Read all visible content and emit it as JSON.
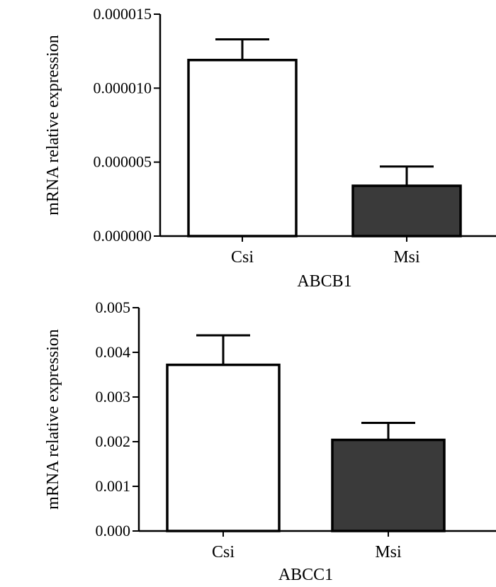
{
  "chart_data": [
    {
      "type": "bar",
      "panel": "top",
      "categories": [
        "Csi",
        "Msi"
      ],
      "values": [
        1.19e-05,
        3.4e-06
      ],
      "errors": [
        1.4e-06,
        1.3e-06
      ],
      "colors": [
        "#ffffff",
        "#3a3a3a"
      ],
      "ylim": [
        0,
        1.5e-05
      ],
      "yticks": [
        0.0,
        5e-06,
        1e-05,
        1.5e-05
      ],
      "ytick_labels": [
        "0.000000",
        "0.000005",
        "0.000010",
        "0.000015"
      ],
      "xlabel": "ABCB1",
      "ylabel": "mRNA relative expression"
    },
    {
      "type": "bar",
      "panel": "bottom",
      "categories": [
        "Csi",
        "Msi"
      ],
      "values": [
        0.00372,
        0.00204
      ],
      "errors": [
        0.00066,
        0.00038
      ],
      "colors": [
        "#ffffff",
        "#3a3a3a"
      ],
      "ylim": [
        0,
        0.005
      ],
      "yticks": [
        0.0,
        0.001,
        0.002,
        0.003,
        0.004,
        0.005
      ],
      "ytick_labels": [
        "0.000",
        "0.001",
        "0.002",
        "0.003",
        "0.004",
        "0.005"
      ],
      "xlabel": "ABCC1",
      "ylabel": "mRNA relative expression"
    }
  ]
}
